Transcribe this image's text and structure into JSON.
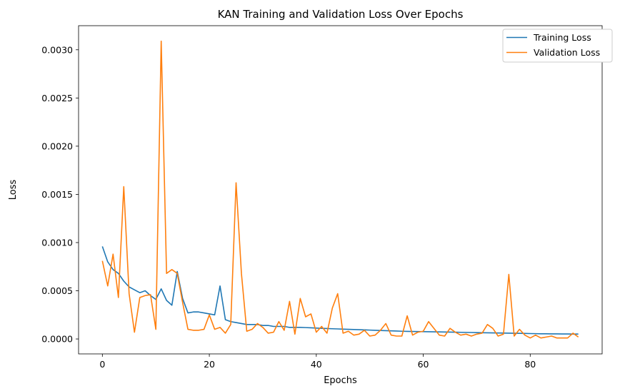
{
  "chart_data": {
    "type": "line",
    "title": "KAN Training and Validation Loss Over Epochs",
    "xlabel": "Epochs",
    "ylabel": "Loss",
    "xlim": [
      -4.45,
      93.45
    ],
    "ylim": [
      -0.000155,
      0.00325
    ],
    "xticks": [
      0,
      20,
      40,
      60,
      80
    ],
    "xtick_labels": [
      "0",
      "20",
      "40",
      "60",
      "80"
    ],
    "yticks": [
      0.0,
      0.0005,
      0.001,
      0.0015,
      0.002,
      0.0025,
      0.003
    ],
    "ytick_labels": [
      "0.0000",
      "0.0005",
      "0.0010",
      "0.0015",
      "0.0020",
      "0.0025",
      "0.0030"
    ],
    "grid": false,
    "legend_position": "top-right",
    "series": [
      {
        "name": "Training Loss",
        "color": "#1f77b4",
        "x": [
          0,
          1,
          2,
          3,
          4,
          5,
          6,
          7,
          8,
          9,
          10,
          11,
          12,
          13,
          14,
          15,
          16,
          17,
          18,
          19,
          20,
          21,
          22,
          23,
          24,
          25,
          26,
          27,
          28,
          29,
          30,
          31,
          32,
          33,
          34,
          35,
          36,
          37,
          38,
          39,
          40,
          41,
          42,
          43,
          44,
          45,
          46,
          47,
          48,
          49,
          50,
          51,
          52,
          53,
          54,
          55,
          56,
          57,
          58,
          59,
          60,
          61,
          62,
          63,
          64,
          65,
          66,
          67,
          68,
          69,
          70,
          71,
          72,
          73,
          74,
          75,
          76,
          77,
          78,
          79,
          80,
          81,
          82,
          83,
          84,
          85,
          86,
          87,
          88,
          89
        ],
        "values": [
          0.00096,
          0.0008,
          0.00072,
          0.00068,
          0.0006,
          0.00054,
          0.00051,
          0.00048,
          0.0005,
          0.00045,
          0.00041,
          0.00052,
          0.0004,
          0.00035,
          0.0007,
          0.00042,
          0.00027,
          0.00028,
          0.00028,
          0.00027,
          0.00026,
          0.00025,
          0.00055,
          0.0002,
          0.00018,
          0.00017,
          0.00016,
          0.00015,
          0.00015,
          0.00015,
          0.00014,
          0.00014,
          0.00013,
          0.00013,
          0.00013,
          0.00012,
          0.00012,
          0.00012,
          0.000118,
          0.000116,
          0.000113,
          0.00011,
          0.000108,
          0.000106,
          0.000104,
          0.000102,
          0.0001,
          9.8e-05,
          9.6e-05,
          9.4e-05,
          9.2e-05,
          9e-05,
          8.8e-05,
          8.6e-05,
          8.4e-05,
          8.2e-05,
          8e-05,
          7.9e-05,
          7.8e-05,
          7.7e-05,
          7.6e-05,
          7.5e-05,
          7.4e-05,
          7.3e-05,
          7.2e-05,
          7.1e-05,
          7e-05,
          6.9e-05,
          6.8e-05,
          6.7e-05,
          6.6e-05,
          6.5e-05,
          6.4e-05,
          6.3e-05,
          6.2e-05,
          6.1e-05,
          6e-05,
          5.9e-05,
          5.8e-05,
          5.7e-05,
          5.6e-05,
          5.5e-05,
          5.4e-05,
          5.4e-05,
          5.3e-05,
          5.3e-05,
          5.2e-05,
          5.2e-05,
          5.1e-05,
          5.1e-05
        ]
      },
      {
        "name": "Validation Loss",
        "color": "#ff7f0e",
        "x": [
          0,
          1,
          2,
          3,
          4,
          5,
          6,
          7,
          8,
          9,
          10,
          11,
          12,
          13,
          14,
          15,
          16,
          17,
          18,
          19,
          20,
          21,
          22,
          23,
          24,
          25,
          26,
          27,
          28,
          29,
          30,
          31,
          32,
          33,
          34,
          35,
          36,
          37,
          38,
          39,
          40,
          41,
          42,
          43,
          44,
          45,
          46,
          47,
          48,
          49,
          50,
          51,
          52,
          53,
          54,
          55,
          56,
          57,
          58,
          59,
          60,
          61,
          62,
          63,
          64,
          65,
          66,
          67,
          68,
          69,
          70,
          71,
          72,
          73,
          74,
          75,
          76,
          77,
          78,
          79,
          80,
          81,
          82,
          83,
          84,
          85,
          86,
          87,
          88,
          89
        ],
        "values": [
          0.00081,
          0.00055,
          0.00088,
          0.00043,
          0.00158,
          0.00047,
          7e-05,
          0.00043,
          0.00045,
          0.00046,
          0.0001,
          0.00309,
          0.00068,
          0.00072,
          0.00068,
          0.00038,
          0.0001,
          9e-05,
          9e-05,
          0.0001,
          0.00025,
          0.0001,
          0.00012,
          6e-05,
          0.00015,
          0.00162,
          0.00068,
          8e-05,
          0.0001,
          0.00016,
          0.00012,
          6e-05,
          7e-05,
          0.00018,
          9e-05,
          0.00039,
          5e-05,
          0.00042,
          0.00023,
          0.00026,
          7e-05,
          0.00013,
          6e-05,
          0.00032,
          0.00047,
          6e-05,
          8e-05,
          4e-05,
          5e-05,
          9e-05,
          3e-05,
          4e-05,
          9e-05,
          0.00016,
          4e-05,
          3e-05,
          3e-05,
          0.00024,
          4e-05,
          7e-05,
          8e-05,
          0.00018,
          0.00011,
          4e-05,
          3e-05,
          0.00011,
          7e-05,
          4e-05,
          5e-05,
          3e-05,
          5e-05,
          6e-05,
          0.00015,
          0.00011,
          3e-05,
          5e-05,
          0.00067,
          3e-05,
          0.0001,
          4e-05,
          1e-05,
          4e-05,
          1e-05,
          2e-05,
          3e-05,
          1e-05,
          1e-05,
          1e-05,
          6e-05,
          2e-05
        ]
      }
    ]
  }
}
